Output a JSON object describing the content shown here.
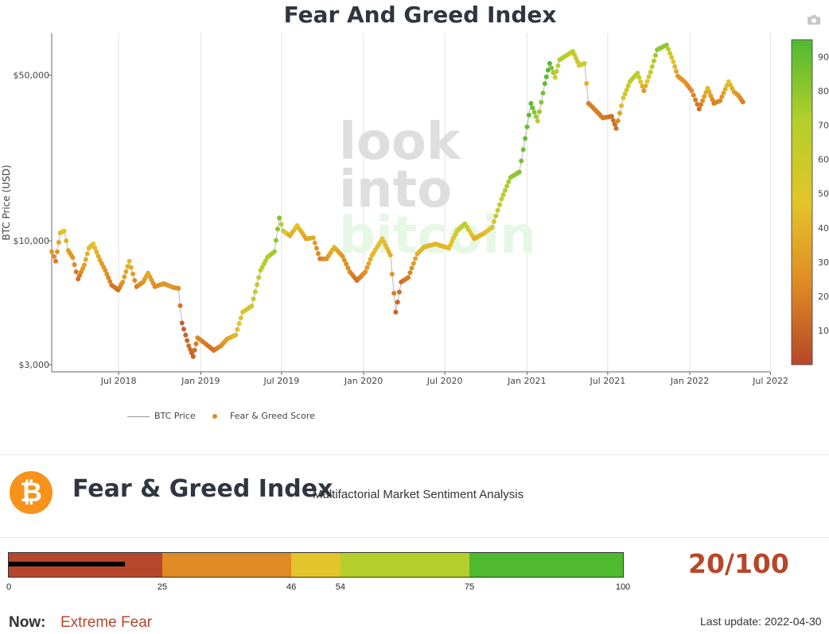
{
  "header": {
    "title": "Fear And Greed Index"
  },
  "chart_data": {
    "type": "scatter",
    "title": "Fear And Greed Index",
    "ylabel": "BTC Price (USD)",
    "yscale": "log",
    "y_ticks": [
      3000,
      10000,
      50000
    ],
    "y_tick_labels": [
      "$3,000",
      "$10,000",
      "$50,000"
    ],
    "x_tick_labels": [
      "Jul 2018",
      "Jan 2019",
      "Jul 2019",
      "Jan 2020",
      "Jul 2020",
      "Jan 2021",
      "Jul 2021",
      "Jan 2022",
      "Jul 2022"
    ],
    "x_range": [
      "2018-02-01",
      "2022-06-30"
    ],
    "y_range": [
      2800,
      75000
    ],
    "colorbar": {
      "min": 0,
      "max": 95,
      "ticks": [
        10,
        20,
        30,
        40,
        50,
        60,
        70,
        80,
        90
      ]
    },
    "legend": [
      "BTC Price",
      "Fear & Greed Score"
    ],
    "legend_position": "bottom-left",
    "series": [
      {
        "name": "Fear & Greed Score",
        "points": [
          {
            "date": "2018-02-01",
            "price": 9000,
            "score": 30
          },
          {
            "date": "2018-02-10",
            "price": 8200,
            "score": 20
          },
          {
            "date": "2018-02-20",
            "price": 10800,
            "score": 45
          },
          {
            "date": "2018-03-01",
            "price": 11000,
            "score": 50
          },
          {
            "date": "2018-03-10",
            "price": 9100,
            "score": 35
          },
          {
            "date": "2018-03-20",
            "price": 8500,
            "score": 30
          },
          {
            "date": "2018-04-01",
            "price": 6900,
            "score": 15
          },
          {
            "date": "2018-04-15",
            "price": 7900,
            "score": 35
          },
          {
            "date": "2018-04-25",
            "price": 9300,
            "score": 45
          },
          {
            "date": "2018-05-05",
            "price": 9700,
            "score": 50
          },
          {
            "date": "2018-05-20",
            "price": 8300,
            "score": 35
          },
          {
            "date": "2018-06-01",
            "price": 7500,
            "score": 30
          },
          {
            "date": "2018-06-15",
            "price": 6500,
            "score": 20
          },
          {
            "date": "2018-06-30",
            "price": 6200,
            "score": 15
          },
          {
            "date": "2018-07-10",
            "price": 6700,
            "score": 30
          },
          {
            "date": "2018-07-25",
            "price": 8200,
            "score": 45
          },
          {
            "date": "2018-08-10",
            "price": 6400,
            "score": 20
          },
          {
            "date": "2018-08-25",
            "price": 6700,
            "score": 30
          },
          {
            "date": "2018-09-05",
            "price": 7300,
            "score": 40
          },
          {
            "date": "2018-09-20",
            "price": 6400,
            "score": 25
          },
          {
            "date": "2018-10-10",
            "price": 6600,
            "score": 30
          },
          {
            "date": "2018-11-01",
            "price": 6350,
            "score": 30
          },
          {
            "date": "2018-11-12",
            "price": 6300,
            "score": 25
          },
          {
            "date": "2018-11-20",
            "price": 4500,
            "score": 10
          },
          {
            "date": "2018-11-28",
            "price": 4000,
            "score": 10
          },
          {
            "date": "2018-12-05",
            "price": 3600,
            "score": 15
          },
          {
            "date": "2018-12-15",
            "price": 3250,
            "score": 10
          },
          {
            "date": "2018-12-25",
            "price": 3900,
            "score": 25
          },
          {
            "date": "2019-01-10",
            "price": 3700,
            "score": 20
          },
          {
            "date": "2019-01-30",
            "price": 3450,
            "score": 15
          },
          {
            "date": "2019-02-15",
            "price": 3600,
            "score": 25
          },
          {
            "date": "2019-03-01",
            "price": 3850,
            "score": 35
          },
          {
            "date": "2019-03-20",
            "price": 4000,
            "score": 45
          },
          {
            "date": "2019-04-05",
            "price": 5000,
            "score": 55
          },
          {
            "date": "2019-04-25",
            "price": 5300,
            "score": 60
          },
          {
            "date": "2019-05-15",
            "price": 7500,
            "score": 70
          },
          {
            "date": "2019-05-30",
            "price": 8500,
            "score": 75
          },
          {
            "date": "2019-06-15",
            "price": 9000,
            "score": 80
          },
          {
            "date": "2019-06-26",
            "price": 12500,
            "score": 85
          },
          {
            "date": "2019-07-05",
            "price": 11000,
            "score": 60
          },
          {
            "date": "2019-07-20",
            "price": 10500,
            "score": 40
          },
          {
            "date": "2019-08-05",
            "price": 11600,
            "score": 50
          },
          {
            "date": "2019-08-25",
            "price": 10200,
            "score": 35
          },
          {
            "date": "2019-09-10",
            "price": 10300,
            "score": 40
          },
          {
            "date": "2019-09-25",
            "price": 8400,
            "score": 20
          },
          {
            "date": "2019-10-10",
            "price": 8400,
            "score": 30
          },
          {
            "date": "2019-10-27",
            "price": 9400,
            "score": 45
          },
          {
            "date": "2019-11-15",
            "price": 8600,
            "score": 30
          },
          {
            "date": "2019-12-01",
            "price": 7400,
            "score": 25
          },
          {
            "date": "2019-12-17",
            "price": 6800,
            "score": 15
          },
          {
            "date": "2020-01-05",
            "price": 7400,
            "score": 30
          },
          {
            "date": "2020-01-20",
            "price": 8700,
            "score": 45
          },
          {
            "date": "2020-02-12",
            "price": 10200,
            "score": 50
          },
          {
            "date": "2020-03-01",
            "price": 8700,
            "score": 40
          },
          {
            "date": "2020-03-13",
            "price": 5000,
            "score": 10
          },
          {
            "date": "2020-03-25",
            "price": 6700,
            "score": 15
          },
          {
            "date": "2020-04-10",
            "price": 7000,
            "score": 20
          },
          {
            "date": "2020-04-30",
            "price": 8800,
            "score": 40
          },
          {
            "date": "2020-05-15",
            "price": 9400,
            "score": 45
          },
          {
            "date": "2020-06-10",
            "price": 9700,
            "score": 45
          },
          {
            "date": "2020-07-10",
            "price": 9300,
            "score": 45
          },
          {
            "date": "2020-07-28",
            "price": 11000,
            "score": 60
          },
          {
            "date": "2020-08-15",
            "price": 11800,
            "score": 70
          },
          {
            "date": "2020-09-05",
            "price": 10200,
            "score": 40
          },
          {
            "date": "2020-09-25",
            "price": 10700,
            "score": 45
          },
          {
            "date": "2020-10-15",
            "price": 11400,
            "score": 55
          },
          {
            "date": "2020-11-05",
            "price": 15000,
            "score": 70
          },
          {
            "date": "2020-11-25",
            "price": 18500,
            "score": 80
          },
          {
            "date": "2020-12-15",
            "price": 19500,
            "score": 85
          },
          {
            "date": "2020-12-28",
            "price": 27000,
            "score": 90
          },
          {
            "date": "2021-01-10",
            "price": 38000,
            "score": 93
          },
          {
            "date": "2021-01-25",
            "price": 32000,
            "score": 75
          },
          {
            "date": "2021-02-10",
            "price": 46000,
            "score": 92
          },
          {
            "date": "2021-02-21",
            "price": 56000,
            "score": 95
          },
          {
            "date": "2021-03-05",
            "price": 49000,
            "score": 70
          },
          {
            "date": "2021-03-15",
            "price": 58000,
            "score": 75
          },
          {
            "date": "2021-04-14",
            "price": 63000,
            "score": 72
          },
          {
            "date": "2021-04-28",
            "price": 55000,
            "score": 60
          },
          {
            "date": "2021-05-10",
            "price": 56000,
            "score": 65
          },
          {
            "date": "2021-05-19",
            "price": 38000,
            "score": 20
          },
          {
            "date": "2021-06-01",
            "price": 36000,
            "score": 20
          },
          {
            "date": "2021-06-20",
            "price": 33000,
            "score": 20
          },
          {
            "date": "2021-07-10",
            "price": 33500,
            "score": 15
          },
          {
            "date": "2021-07-20",
            "price": 29800,
            "score": 15
          },
          {
            "date": "2021-08-05",
            "price": 40000,
            "score": 55
          },
          {
            "date": "2021-08-20",
            "price": 47000,
            "score": 70
          },
          {
            "date": "2021-09-06",
            "price": 51000,
            "score": 72
          },
          {
            "date": "2021-09-20",
            "price": 43000,
            "score": 30
          },
          {
            "date": "2021-10-05",
            "price": 51500,
            "score": 70
          },
          {
            "date": "2021-10-20",
            "price": 64000,
            "score": 82
          },
          {
            "date": "2021-11-10",
            "price": 67000,
            "score": 82
          },
          {
            "date": "2021-11-25",
            "price": 57000,
            "score": 50
          },
          {
            "date": "2021-12-05",
            "price": 49500,
            "score": 30
          },
          {
            "date": "2021-12-20",
            "price": 47000,
            "score": 30
          },
          {
            "date": "2022-01-05",
            "price": 43000,
            "score": 25
          },
          {
            "date": "2022-01-22",
            "price": 36000,
            "score": 15
          },
          {
            "date": "2022-02-10",
            "price": 44000,
            "score": 45
          },
          {
            "date": "2022-02-24",
            "price": 38000,
            "score": 20
          },
          {
            "date": "2022-03-10",
            "price": 39000,
            "score": 25
          },
          {
            "date": "2022-03-29",
            "price": 47000,
            "score": 50
          },
          {
            "date": "2022-04-10",
            "price": 42500,
            "score": 35
          },
          {
            "date": "2022-04-20",
            "price": 41000,
            "score": 30
          },
          {
            "date": "2022-04-30",
            "price": 38500,
            "score": 20
          }
        ]
      }
    ]
  },
  "watermark": [
    "look",
    "into",
    "bitcoin"
  ],
  "index_panel": {
    "logo_symbol": "₿",
    "title": "Fear & Greed Index",
    "subtitle": "Multifactorial Market Sentiment Analysis",
    "score": 20,
    "score_text": "20/100",
    "gauge": {
      "segments": [
        {
          "to": 25,
          "color": "#b7472a"
        },
        {
          "to": 46,
          "color": "#df8a24"
        },
        {
          "to": 54,
          "color": "#e3c42a"
        },
        {
          "to": 75,
          "color": "#b4cf2b"
        },
        {
          "to": 100,
          "color": "#4fb930"
        }
      ],
      "tick_labels": [
        "0",
        "25",
        "46",
        "54",
        "75",
        "100"
      ]
    },
    "now_label": "Now:",
    "now_value": "Extreme Fear",
    "last_update": "Last update: 2022-04-30"
  }
}
